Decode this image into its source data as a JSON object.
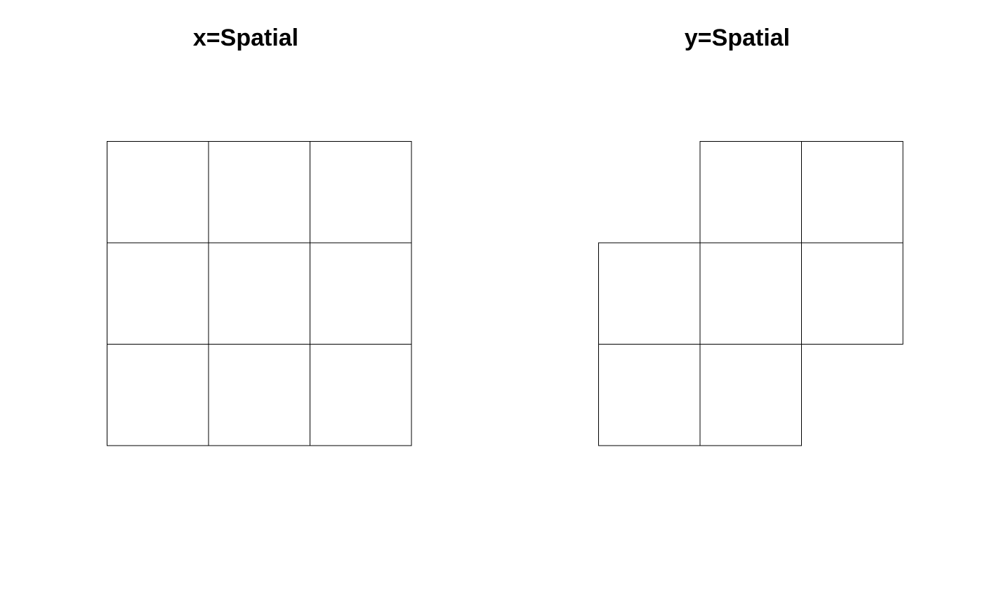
{
  "panels": [
    {
      "title": "x=Spatial",
      "grid_size": 3,
      "cells": [
        [
          1,
          1,
          1
        ],
        [
          1,
          1,
          1
        ],
        [
          1,
          1,
          1
        ]
      ]
    },
    {
      "title": "y=Spatial",
      "grid_size": 3,
      "cells": [
        [
          0,
          1,
          1
        ],
        [
          1,
          1,
          1
        ],
        [
          1,
          1,
          0
        ]
      ]
    }
  ],
  "colors": {
    "cell_stroke": "#000000",
    "cell_fill": "#ffffff",
    "background": "#ffffff"
  }
}
